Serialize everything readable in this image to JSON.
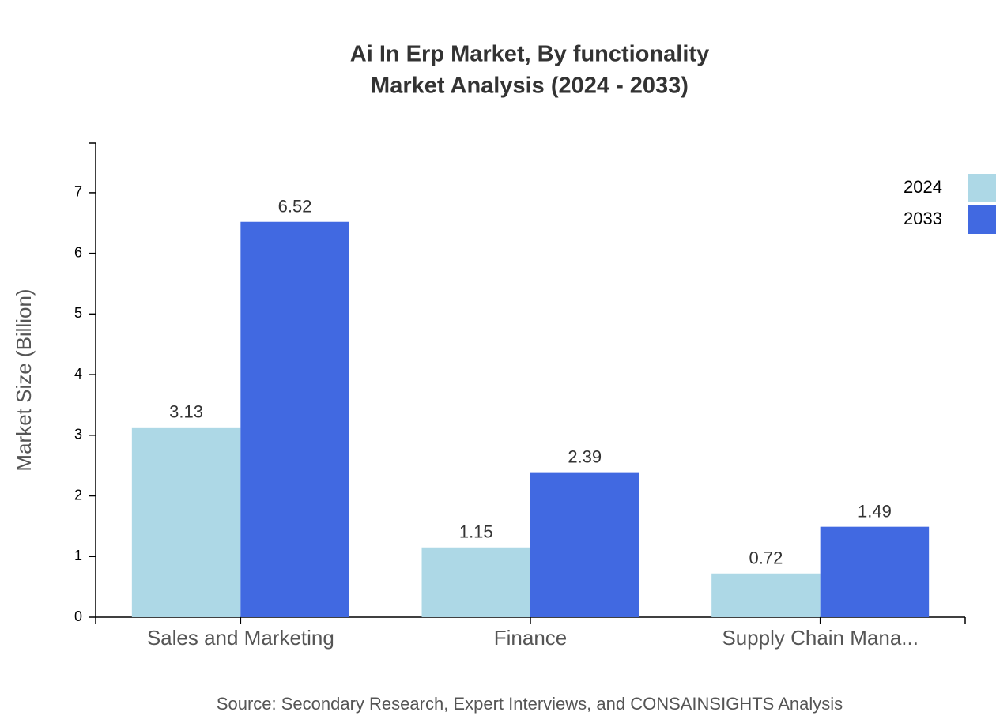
{
  "chart_data": {
    "type": "bar",
    "title": "Ai In Erp Market, By functionality",
    "subtitle": "Market Analysis (2024 - 2033)",
    "y_label": "Market Size (Billion)",
    "source": "Source: Secondary Research, Expert Interviews, and CONSAINSIGHTS Analysis",
    "categories": [
      "Sales and Marketing",
      "Finance",
      "Supply Chain Mana..."
    ],
    "series": [
      {
        "name": "2024",
        "color": "#add8e6",
        "values": [
          3.13,
          1.15,
          0.72
        ]
      },
      {
        "name": "2033",
        "color": "#4169e1",
        "values": [
          6.52,
          2.39,
          1.49
        ]
      }
    ],
    "ylim": [
      0,
      7.82
    ],
    "yticks": [
      0,
      1,
      2,
      3,
      4,
      5,
      6,
      7
    ],
    "legend": "top-right"
  }
}
